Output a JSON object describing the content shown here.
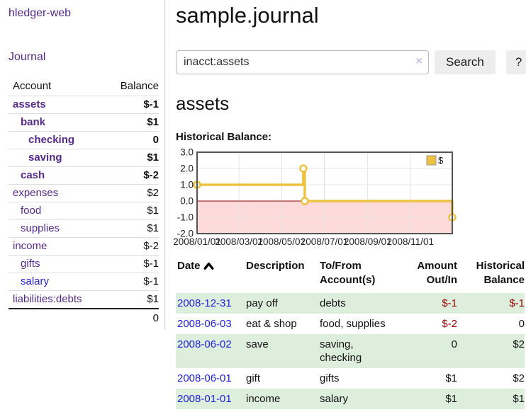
{
  "app": {
    "brand": "hledger-web"
  },
  "nav": {
    "journal": "Journal"
  },
  "sidebar": {
    "accounts": {
      "col_account": "Account",
      "col_balance": "Balance",
      "rows": [
        {
          "name": "assets",
          "indent": 1,
          "bold": true,
          "balance": "$-1",
          "balance_class": "neg-strong"
        },
        {
          "name": "bank",
          "indent": 2,
          "bold": true,
          "balance": "$1",
          "balance_class": ""
        },
        {
          "name": "checking",
          "indent": 3,
          "bold": true,
          "balance": "0",
          "balance_class": ""
        },
        {
          "name": "saving",
          "indent": 3,
          "bold": true,
          "balance": "$1",
          "balance_class": ""
        },
        {
          "name": "cash",
          "indent": 2,
          "bold": true,
          "balance": "$-2",
          "balance_class": "neg-strong"
        },
        {
          "name": "expenses",
          "indent": 1,
          "bold": false,
          "balance": "$2",
          "balance_class": ""
        },
        {
          "name": "food",
          "indent": 2,
          "bold": false,
          "balance": "$1",
          "balance_class": ""
        },
        {
          "name": "supplies",
          "indent": 2,
          "bold": false,
          "balance": "$1",
          "balance_class": ""
        },
        {
          "name": "income",
          "indent": 1,
          "bold": false,
          "balance": "$-2",
          "balance_class": "neg-faded"
        },
        {
          "name": "gifts",
          "indent": 2,
          "bold": false,
          "balance": "$-1",
          "balance_class": "neg-faded"
        },
        {
          "name": "salary",
          "indent": 2,
          "bold": false,
          "blue": true,
          "balance": "$-1",
          "balance_class": "neg-faded"
        },
        {
          "name": "liabilities:debts",
          "indent": 1,
          "bold": false,
          "balance": "$1",
          "balance_class": ""
        }
      ],
      "total": "0"
    }
  },
  "main": {
    "title": "sample.journal",
    "search": {
      "value": "inacct:assets",
      "clear": "×",
      "search_button": "Search",
      "help_button": "?"
    },
    "account_heading": "assets",
    "chart_title": "Historical Balance:"
  },
  "chart_data": {
    "type": "line",
    "title": "Historical Balance",
    "legend": [
      {
        "label": "$",
        "color": "#EDC240"
      }
    ],
    "legend_position": "top-right",
    "grid": true,
    "x_range": [
      "2008-01-01",
      "2008-12-31"
    ],
    "ylim": [
      -2,
      3
    ],
    "y_ticks": [
      3.0,
      2.0,
      1.0,
      0.0,
      -1.0,
      -2.0
    ],
    "x_ticks": [
      "2008/01/01",
      "2008/03/01",
      "2008/05/01",
      "2008/07/01",
      "2008/09/01",
      "2008/11/01"
    ],
    "negative_region_fill": "#fcdada",
    "zero_line_color": "#8b0000",
    "series": [
      {
        "name": "$",
        "color": "#EDC240",
        "step": "after",
        "points": [
          [
            "2008-01-01",
            1
          ],
          [
            "2008-06-01",
            2
          ],
          [
            "2008-06-02",
            2
          ],
          [
            "2008-06-03",
            0
          ],
          [
            "2008-12-31",
            -1
          ]
        ]
      }
    ]
  },
  "register": {
    "headers": [
      {
        "lines": [
          "Date"
        ],
        "sorted": "asc",
        "align": "left"
      },
      {
        "lines": [
          "Description"
        ],
        "align": "left"
      },
      {
        "lines": [
          "To/From",
          "Account(s)"
        ],
        "align": "left"
      },
      {
        "lines": [
          "Amount",
          "Out/In"
        ],
        "align": "right"
      },
      {
        "lines": [
          "Historical",
          "Balance"
        ],
        "align": "right"
      }
    ],
    "rows": [
      {
        "date": "2008-12-31",
        "description": "pay off",
        "accounts": "debts",
        "amount": "$-1",
        "amount_negative": true,
        "balance": "$-1",
        "balance_negative": true,
        "highlight": true
      },
      {
        "date": "2008-06-03",
        "description": "eat & shop",
        "accounts": "food, supplies",
        "amount": "$-2",
        "amount_negative": true,
        "balance": "0",
        "balance_negative": false,
        "highlight": false
      },
      {
        "date": "2008-06-02",
        "description": "save",
        "accounts": "saving, checking",
        "amount": "0",
        "amount_negative": false,
        "balance": "$2",
        "balance_negative": false,
        "highlight": true
      },
      {
        "date": "2008-06-01",
        "description": "gift",
        "accounts": "gifts",
        "amount": "$1",
        "amount_negative": false,
        "balance": "$2",
        "balance_negative": false,
        "highlight": false
      },
      {
        "date": "2008-01-01",
        "description": "income",
        "accounts": "salary",
        "amount": "$1",
        "amount_negative": false,
        "balance": "$1",
        "balance_negative": false,
        "highlight": true
      }
    ]
  },
  "colors": {
    "accent_purple": "#552a8b",
    "link_blue": "#2222dd",
    "negative_strong": "#990000",
    "negative_faded": "#bb7171",
    "row_highlight_green": "#ddeedd",
    "chart_line_gold": "#EDC240",
    "chart_negative_fill": "#fcdada",
    "chart_zero_line": "#8b0000"
  }
}
